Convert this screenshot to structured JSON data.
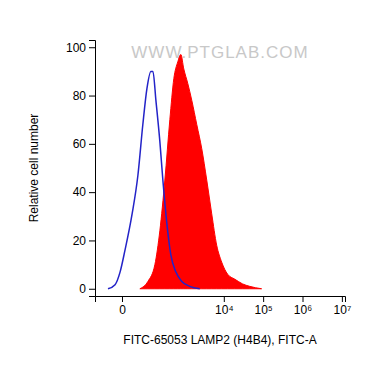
{
  "chart_data": {
    "type": "line",
    "x_label": "FITC-65053 LAMP2 (H4B4), FITC-A",
    "y_label": "Relative cell number",
    "annotations": [
      "WWW.PTGLAB.COM"
    ],
    "log": "x",
    "xlim": [
      -100,
      12000000
    ],
    "xticks": [
      0,
      {
        "value": 10000,
        "label": "10⁴"
      },
      {
        "value": 100000,
        "label": "10⁵"
      },
      {
        "value": 1000000,
        "label": "10⁶"
      },
      {
        "value": 10000000,
        "label": "10⁷"
      }
    ],
    "ylim": [
      -3,
      103
    ],
    "yticks": [
      0,
      20,
      40,
      60,
      80,
      100
    ],
    "series": [
      {
        "type": "area",
        "color": "#ff0000",
        "x": [
          48,
          92,
          152,
          212,
          293,
          401,
          513,
          655,
          786,
          940,
          1194,
          1515,
          2036,
          2735,
          3670,
          4920,
          6590,
          8840,
          12530,
          18880,
          30130,
          45400,
          91270
        ],
        "values": [
          0,
          3,
          10,
          24,
          45,
          70,
          87,
          94,
          97,
          91,
          85,
          78,
          68,
          58,
          45,
          31,
          18,
          11,
          6,
          4,
          2,
          1,
          0
        ]
      },
      {
        "type": "line",
        "color": "#2323c8",
        "x": [
          -33,
          -13,
          -3,
          5,
          21,
          40,
          62,
          86,
          115,
          133,
          163,
          212,
          258,
          333,
          427,
          580,
          834,
          1345,
          2430
        ],
        "values": [
          0,
          1.7,
          7,
          16,
          31,
          47,
          68,
          83,
          90,
          90,
          78,
          61,
          45,
          27,
          14,
          7,
          3,
          1,
          0
        ]
      }
    ]
  }
}
